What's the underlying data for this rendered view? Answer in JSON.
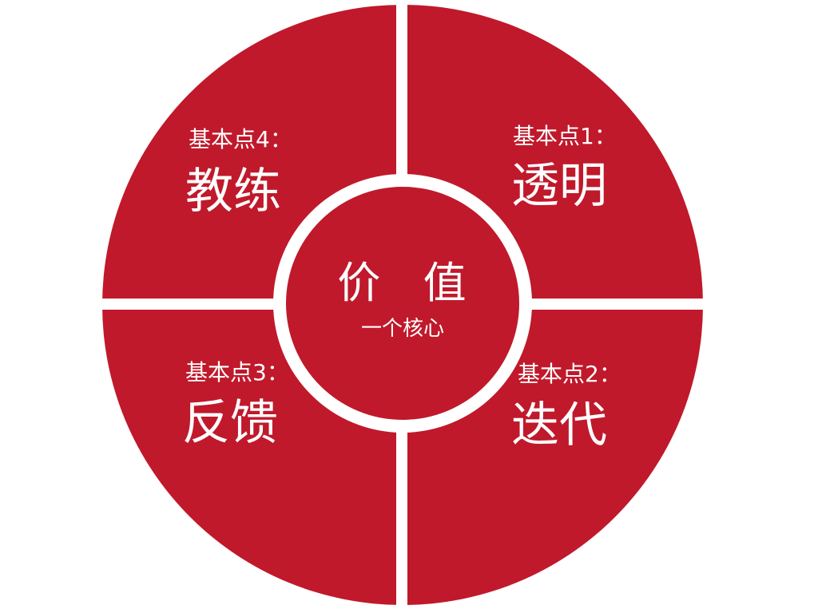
{
  "colors": {
    "segment": "#c0192b",
    "gap": "#ffffff",
    "text": "#ffffff"
  },
  "center": {
    "title": "价 值",
    "subtitle": "一个核心"
  },
  "quadrants": {
    "top_right": {
      "label": "基本点1：",
      "title": "透明"
    },
    "bottom_right": {
      "label": "基本点2：",
      "title": "迭代"
    },
    "bottom_left": {
      "label": "基本点3：",
      "title": "反馈"
    },
    "top_left": {
      "label": "基本点4：",
      "title": "教练"
    }
  }
}
